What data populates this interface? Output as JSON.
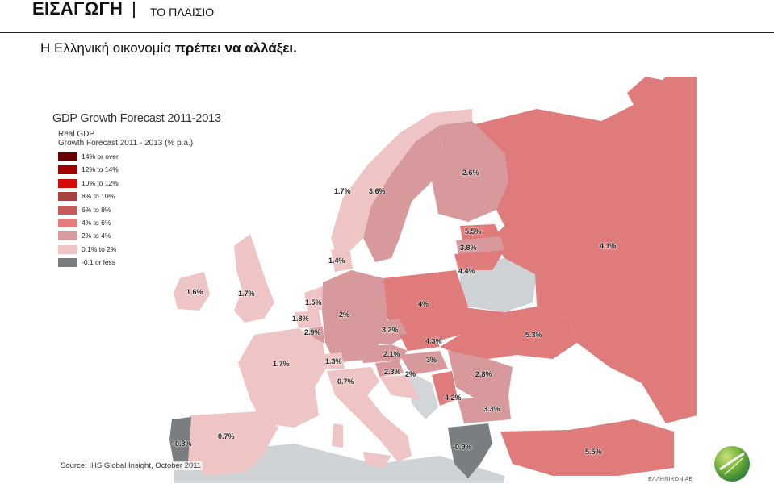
{
  "header": {
    "title": "ΕΙΣΑΓΩΓΗ",
    "subtitle": "ΤΟ ΠΛΑΙΣΙΟ"
  },
  "headline": {
    "normal": "Η Ελληνική οικονομία ",
    "bold": "πρέπει να αλλάξει."
  },
  "map": {
    "title": "GDP Growth Forecast 2011-2013",
    "legend_title_line1": "Real GDP",
    "legend_title_line2": "Growth Forecast 2011 - 2013 (% p.a.)",
    "legend": [
      {
        "label": "14% or over",
        "color": "#6b0000"
      },
      {
        "label": "12% to 14%",
        "color": "#a10000"
      },
      {
        "label": "10% to 12%",
        "color": "#d40a0a"
      },
      {
        "label": "8% to 10%",
        "color": "#a8433f"
      },
      {
        "label": "6% to 8%",
        "color": "#c95a5a"
      },
      {
        "label": "4% to 6%",
        "color": "#e57c7c"
      },
      {
        "label": "2% to 4%",
        "color": "#d99a9c"
      },
      {
        "label": "0.1% to 2%",
        "color": "#efc4c4"
      },
      {
        "label": "-0.1 or less",
        "color": "#7a7e80"
      }
    ],
    "countries": [
      {
        "name": "Norway",
        "value": "1.7%"
      },
      {
        "name": "Sweden",
        "value": "3.6%"
      },
      {
        "name": "Finland",
        "value": "2.6%"
      },
      {
        "name": "Estonia",
        "value": "5.5%"
      },
      {
        "name": "Latvia",
        "value": "3.8%"
      },
      {
        "name": "Lithuania",
        "value": "4.4%"
      },
      {
        "name": "Russia",
        "value": "4.1%"
      },
      {
        "name": "Denmark",
        "value": "1.4%"
      },
      {
        "name": "Ireland",
        "value": "1.6%"
      },
      {
        "name": "United Kingdom",
        "value": "1.7%"
      },
      {
        "name": "Netherlands",
        "value": "1.5%"
      },
      {
        "name": "Belgium",
        "value": "1.8%"
      },
      {
        "name": "Luxembourg",
        "value": "2.9%"
      },
      {
        "name": "Germany",
        "value": "2%"
      },
      {
        "name": "Poland",
        "value": "4%"
      },
      {
        "name": "Czech Republic",
        "value": "3.2%"
      },
      {
        "name": "Slovakia",
        "value": "4.3%"
      },
      {
        "name": "Ukraine",
        "value": "5.3%"
      },
      {
        "name": "France",
        "value": "1.7%"
      },
      {
        "name": "Switzerland",
        "value": "1.3%"
      },
      {
        "name": "Austria",
        "value": "2.1%"
      },
      {
        "name": "Hungary",
        "value": "3%"
      },
      {
        "name": "Slovenia",
        "value": "2.3%"
      },
      {
        "name": "Croatia",
        "value": "2%"
      },
      {
        "name": "Romania",
        "value": "2.8%"
      },
      {
        "name": "Italy",
        "value": "0.7%"
      },
      {
        "name": "Serbia",
        "value": "4.2%"
      },
      {
        "name": "Bulgaria",
        "value": "3.3%"
      },
      {
        "name": "Spain",
        "value": "0.7%"
      },
      {
        "name": "Portugal",
        "value": "-0.8%"
      },
      {
        "name": "Greece",
        "value": "-0.9%"
      },
      {
        "name": "Turkey",
        "value": "5.5%"
      }
    ],
    "source": "Source: IHS Global Insight, October 2011",
    "brand": "ΕΛΛΗΝΙΚΟΝ ΑΕ"
  }
}
